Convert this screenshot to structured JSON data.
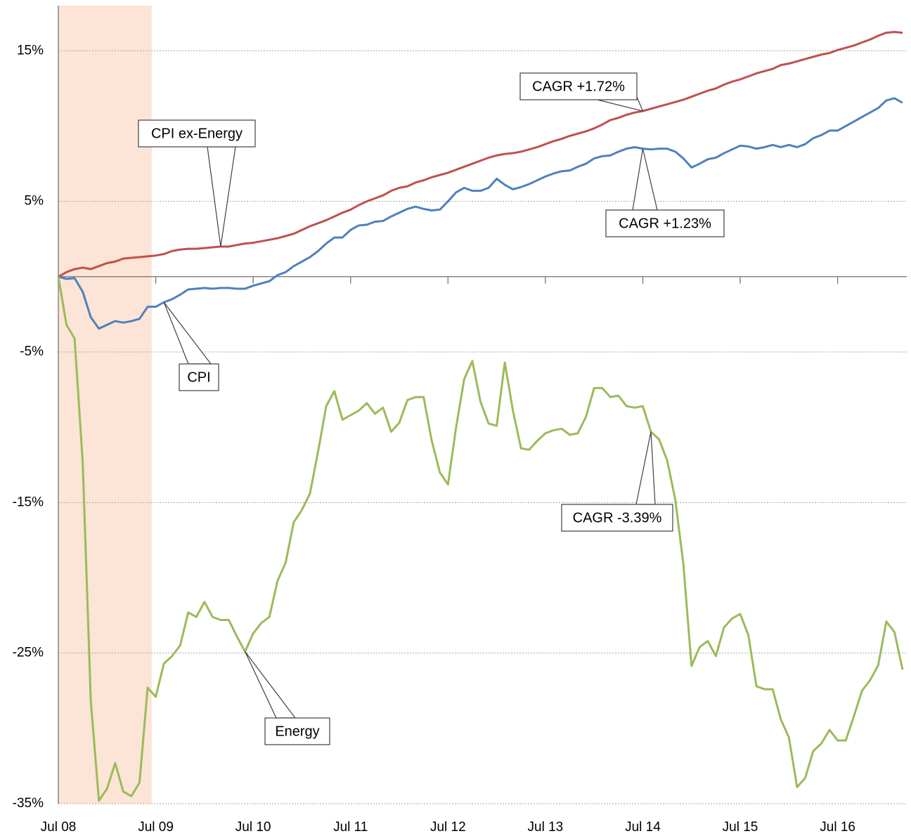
{
  "chart_data": {
    "type": "line",
    "categories": [
      "Jul 08",
      null,
      null,
      null,
      null,
      null,
      null,
      null,
      null,
      null,
      null,
      null,
      "Jul 09",
      null,
      null,
      null,
      null,
      null,
      null,
      null,
      null,
      null,
      null,
      null,
      "Jul 10",
      null,
      null,
      null,
      null,
      null,
      null,
      null,
      null,
      null,
      null,
      null,
      "Jul 11",
      null,
      null,
      null,
      null,
      null,
      null,
      null,
      null,
      null,
      null,
      null,
      "Jul 12",
      null,
      null,
      null,
      null,
      null,
      null,
      null,
      null,
      null,
      null,
      null,
      "Jul 13",
      null,
      null,
      null,
      null,
      null,
      null,
      null,
      null,
      null,
      null,
      null,
      "Jul 14",
      null,
      null,
      null,
      null,
      null,
      null,
      null,
      null,
      null,
      null,
      null,
      "Jul 15",
      null,
      null,
      null,
      null,
      null,
      null,
      null,
      null,
      null,
      null,
      null,
      "Jul 16",
      null,
      null,
      null,
      null,
      null,
      null,
      null,
      null
    ],
    "series": [
      {
        "name": "CPI ex-Energy",
        "color": "#c0504d",
        "values": [
          0,
          0.3,
          0.5,
          0.6,
          0.5,
          0.7,
          0.9,
          1.0,
          1.2,
          1.25,
          1.3,
          1.35,
          1.4,
          1.5,
          1.7,
          1.8,
          1.85,
          1.85,
          1.9,
          1.95,
          2.0,
          2.0,
          2.1,
          2.2,
          2.25,
          2.35,
          2.45,
          2.55,
          2.7,
          2.85,
          3.1,
          3.35,
          3.55,
          3.75,
          4.0,
          4.25,
          4.45,
          4.75,
          5.0,
          5.2,
          5.4,
          5.7,
          5.9,
          6.0,
          6.25,
          6.4,
          6.6,
          6.75,
          6.9,
          7.1,
          7.3,
          7.5,
          7.7,
          7.9,
          8.05,
          8.15,
          8.2,
          8.3,
          8.45,
          8.6,
          8.8,
          9.0,
          9.15,
          9.35,
          9.5,
          9.65,
          9.85,
          10.1,
          10.4,
          10.55,
          10.75,
          10.9,
          11.0,
          11.15,
          11.3,
          11.45,
          11.6,
          11.75,
          11.95,
          12.15,
          12.35,
          12.5,
          12.75,
          12.95,
          13.1,
          13.3,
          13.5,
          13.65,
          13.8,
          14.05,
          14.15,
          14.3,
          14.45,
          14.6,
          14.75,
          14.85,
          15.05,
          15.2,
          15.35,
          15.55,
          15.75,
          16.0,
          16.2,
          16.25,
          16.2
        ]
      },
      {
        "name": "CPI",
        "color": "#4f81bd",
        "values": [
          0,
          -0.15,
          -0.1,
          -1.0,
          -2.7,
          -3.45,
          -3.2,
          -2.95,
          -3.05,
          -2.95,
          -2.8,
          -2.0,
          -2.0,
          -1.7,
          -1.5,
          -1.2,
          -0.85,
          -0.8,
          -0.75,
          -0.8,
          -0.75,
          -0.75,
          -0.8,
          -0.8,
          -0.6,
          -0.45,
          -0.3,
          0.1,
          0.3,
          0.7,
          1.0,
          1.3,
          1.7,
          2.2,
          2.6,
          2.6,
          3.1,
          3.4,
          3.45,
          3.65,
          3.7,
          4.0,
          4.25,
          4.5,
          4.65,
          4.5,
          4.4,
          4.45,
          5.0,
          5.6,
          5.9,
          5.7,
          5.7,
          5.9,
          6.5,
          6.1,
          5.8,
          5.95,
          6.15,
          6.4,
          6.65,
          6.85,
          7.0,
          7.05,
          7.3,
          7.5,
          7.85,
          8.0,
          8.05,
          8.3,
          8.5,
          8.6,
          8.5,
          8.45,
          8.5,
          8.5,
          8.3,
          7.85,
          7.25,
          7.5,
          7.8,
          7.9,
          8.2,
          8.45,
          8.7,
          8.65,
          8.5,
          8.6,
          8.75,
          8.6,
          8.75,
          8.6,
          8.8,
          9.2,
          9.4,
          9.7,
          9.7,
          10.0,
          10.3,
          10.6,
          10.9,
          11.2,
          11.7,
          11.85,
          11.55
        ]
      },
      {
        "name": "Energy",
        "color": "#9bbb59",
        "values": [
          0,
          -3.2,
          -4.1,
          -12.3,
          -28.2,
          -34.8,
          -34.0,
          -32.3,
          -34.2,
          -34.5,
          -33.6,
          -27.3,
          -27.9,
          -25.7,
          -25.2,
          -24.5,
          -22.3,
          -22.6,
          -21.6,
          -22.6,
          -22.8,
          -22.8,
          -23.9,
          -24.9,
          -23.7,
          -23.0,
          -22.6,
          -20.2,
          -19.0,
          -16.3,
          -15.5,
          -14.4,
          -11.6,
          -8.6,
          -7.6,
          -9.5,
          -9.2,
          -8.9,
          -8.4,
          -9.1,
          -8.7,
          -10.3,
          -9.7,
          -8.2,
          -8.0,
          -8.0,
          -10.9,
          -13.0,
          -13.8,
          -10.0,
          -6.8,
          -5.6,
          -8.3,
          -9.75,
          -9.9,
          -5.7,
          -8.9,
          -11.4,
          -11.5,
          -10.9,
          -10.4,
          -10.2,
          -10.1,
          -10.5,
          -10.4,
          -9.3,
          -7.4,
          -7.4,
          -8.0,
          -7.9,
          -8.6,
          -8.7,
          -8.6,
          -10.3,
          -10.8,
          -12.2,
          -14.8,
          -19.1,
          -25.85,
          -24.6,
          -24.2,
          -25.2,
          -23.3,
          -22.7,
          -22.4,
          -23.8,
          -27.2,
          -27.4,
          -27.4,
          -29.4,
          -30.6,
          -33.9,
          -33.3,
          -31.5,
          -31.0,
          -30.1,
          -30.8,
          -30.8,
          -29.2,
          -27.5,
          -26.8,
          -25.8,
          -22.9,
          -23.6,
          -26.1
        ]
      }
    ],
    "ylim": [
      -35,
      18
    ],
    "yticks": [
      {
        "value": 15,
        "label": "15%"
      },
      {
        "value": 5,
        "label": "5%"
      },
      {
        "value": -5,
        "label": "-5%"
      },
      {
        "value": -15,
        "label": "-15%"
      },
      {
        "value": -25,
        "label": "-25%"
      },
      {
        "value": -35,
        "label": "-35%"
      }
    ],
    "grid": true,
    "highlight": {
      "start": 0,
      "end": 11.5,
      "color": "#fce4d6"
    },
    "annotations": [
      {
        "text": "CPI ex-Energy",
        "series": 0,
        "index": 20
      },
      {
        "text": "CAGR +1.72%",
        "series": 0,
        "index": 72
      },
      {
        "text": "CAGR +1.23%",
        "series": 1,
        "index": 72
      },
      {
        "text": "CPI",
        "series": 1,
        "index": 13
      },
      {
        "text": "Energy",
        "series": 2,
        "index": 23
      },
      {
        "text": "CAGR -3.39%",
        "series": 2,
        "index": 73
      }
    ]
  }
}
